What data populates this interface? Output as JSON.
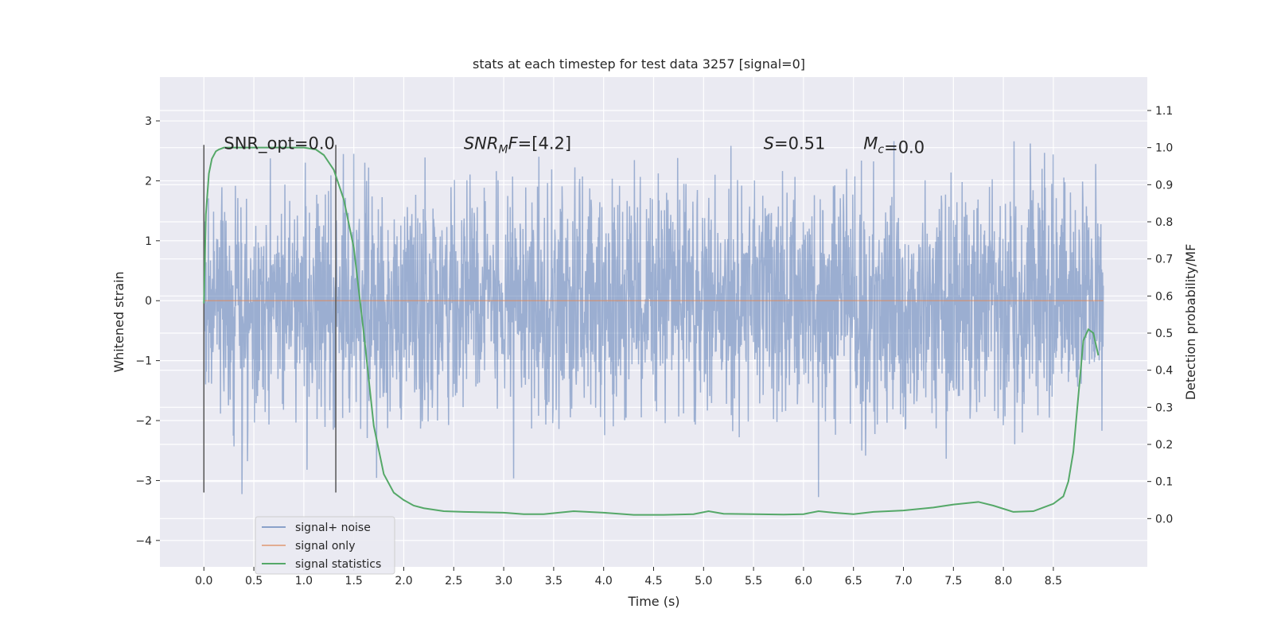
{
  "chart_data": {
    "type": "line",
    "title": "stats at each timestep for test data 3257 [signal=0]",
    "xlabel": "Time (s)",
    "ylabel": "Whitened strain",
    "y2label": "Detection probability/MF",
    "xlim": [
      -0.44,
      9.44
    ],
    "ylim": [
      -4.44,
      3.73
    ],
    "y2lim": [
      -0.13,
      1.19
    ],
    "xticks": [
      "0.0",
      "0.5",
      "1.0",
      "1.5",
      "2.0",
      "2.5",
      "3.0",
      "3.5",
      "4.0",
      "4.5",
      "5.0",
      "5.5",
      "6.0",
      "6.5",
      "7.0",
      "7.5",
      "8.0",
      "8.5"
    ],
    "xtick_values": [
      0,
      0.5,
      1,
      1.5,
      2,
      2.5,
      3,
      3.5,
      4,
      4.5,
      5,
      5.5,
      6,
      6.5,
      7,
      7.5,
      8,
      8.5
    ],
    "yticks": [
      "3",
      "2",
      "1",
      "0",
      "−1",
      "−2",
      "−3",
      "−4"
    ],
    "ytick_values": [
      3,
      2,
      1,
      0,
      -1,
      -2,
      -3,
      -4
    ],
    "y2ticks": [
      "1.1",
      "1.0",
      "0.9",
      "0.8",
      "0.7",
      "0.6",
      "0.5",
      "0.4",
      "0.3",
      "0.2",
      "0.1",
      "0.0"
    ],
    "y2tick_values": [
      1.1,
      1.0,
      0.9,
      0.8,
      0.7,
      0.6,
      0.5,
      0.4,
      0.3,
      0.2,
      0.1,
      0.0
    ],
    "grid": true,
    "legend_position": "lower-left",
    "noise": {
      "x_start": 0.0,
      "x_end": 9.0,
      "sigma": 1.0,
      "min": -4.0,
      "max": 3.4
    },
    "vlines": [
      {
        "x": 0.0,
        "ymin": -3.2,
        "ymax": 2.6
      },
      {
        "x": 1.32,
        "ymin": -3.2,
        "ymax": 2.6
      }
    ],
    "annotations": [
      {
        "text": "SNR_opt=0.0",
        "x": 0.2,
        "y": 2.65
      },
      {
        "base": "SNR",
        "sub": "M",
        "tail": "F=[4.2]",
        "x": 2.6,
        "y": 2.65
      },
      {
        "base": "S",
        "sub": "",
        "tail": "=0.51",
        "x": 5.6,
        "y": 2.65
      },
      {
        "base": "M",
        "sub": "c",
        "tail": "=0.0",
        "x": 6.6,
        "y": 2.65
      }
    ],
    "series": [
      {
        "name": "signal+ noise",
        "color": "#4c72b0"
      },
      {
        "name": "signal only",
        "color": "#dd8452",
        "x": [
          0,
          9
        ],
        "y": [
          0,
          0
        ]
      },
      {
        "name": "signal statistics",
        "color": "#55a868",
        "axis": "right",
        "x": [
          0.0,
          0.02,
          0.05,
          0.08,
          0.12,
          0.15,
          0.2,
          0.3,
          0.5,
          0.8,
          1.0,
          1.12,
          1.2,
          1.3,
          1.4,
          1.5,
          1.6,
          1.7,
          1.8,
          1.9,
          2.0,
          2.1,
          2.2,
          2.4,
          2.6,
          2.8,
          3.0,
          3.2,
          3.4,
          3.7,
          4.0,
          4.3,
          4.6,
          4.9,
          5.05,
          5.2,
          5.5,
          5.8,
          6.0,
          6.15,
          6.3,
          6.5,
          6.7,
          7.0,
          7.3,
          7.5,
          7.75,
          7.9,
          8.1,
          8.3,
          8.5,
          8.6,
          8.65,
          8.7,
          8.75,
          8.8,
          8.85,
          8.9,
          8.95
        ],
        "y": [
          0.58,
          0.82,
          0.93,
          0.97,
          0.99,
          0.995,
          1.0,
          1.0,
          1.0,
          1.0,
          1.0,
          0.995,
          0.98,
          0.94,
          0.86,
          0.73,
          0.5,
          0.25,
          0.12,
          0.07,
          0.05,
          0.035,
          0.028,
          0.02,
          0.018,
          0.017,
          0.016,
          0.012,
          0.012,
          0.02,
          0.016,
          0.01,
          0.01,
          0.012,
          0.02,
          0.013,
          0.012,
          0.011,
          0.012,
          0.02,
          0.016,
          0.012,
          0.018,
          0.022,
          0.03,
          0.038,
          0.045,
          0.035,
          0.018,
          0.02,
          0.04,
          0.06,
          0.1,
          0.18,
          0.33,
          0.48,
          0.51,
          0.5,
          0.44
        ]
      }
    ]
  }
}
